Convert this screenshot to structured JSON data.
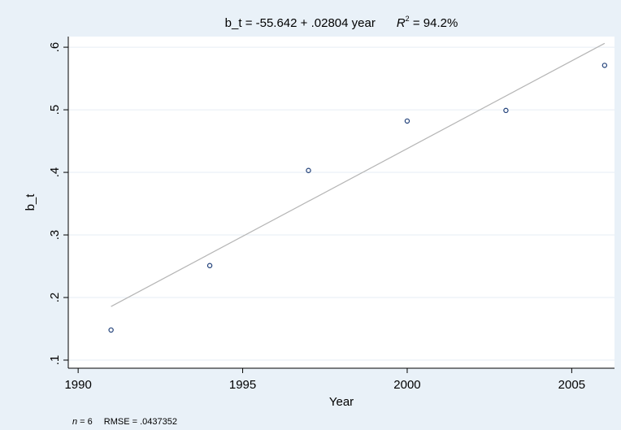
{
  "chart_data": {
    "type": "scatter",
    "title_prefix": "b_t = -55.642 + .02804 year",
    "r2_symbol": "R",
    "r2_superscript": "2",
    "r2_value": " = 94.2%",
    "xlabel": "Year",
    "ylabel": "b_t",
    "x_ticks": [
      1990,
      1995,
      2000,
      2005
    ],
    "x_tick_labels": [
      "1990",
      "1995",
      "2000",
      "2005"
    ],
    "y_ticks": [
      0.1,
      0.2,
      0.3,
      0.4,
      0.5,
      0.6
    ],
    "y_tick_labels": [
      ".1",
      ".2",
      ".3",
      ".4",
      ".5",
      ".6"
    ],
    "xlim": [
      1989.7,
      2006.3
    ],
    "ylim": [
      0.087,
      0.617
    ],
    "grid": true,
    "points": [
      {
        "x": 1991,
        "y": 0.148
      },
      {
        "x": 1994,
        "y": 0.251
      },
      {
        "x": 1997,
        "y": 0.403
      },
      {
        "x": 2000,
        "y": 0.482
      },
      {
        "x": 2003,
        "y": 0.499
      },
      {
        "x": 2006,
        "y": 0.571
      }
    ],
    "fit_line": {
      "intercept": -55.642,
      "slope": 0.02804,
      "x_range": [
        1991,
        2006
      ]
    },
    "colors": {
      "marker": "#1f3f78",
      "fit": "#b5b5b5",
      "grid": "#e6eef4",
      "background": "#e9f1f8",
      "plot": "#ffffff"
    }
  },
  "footnote": {
    "n_label": "n",
    "n_value": " = 6",
    "rmse": "RMSE = .0437352"
  }
}
